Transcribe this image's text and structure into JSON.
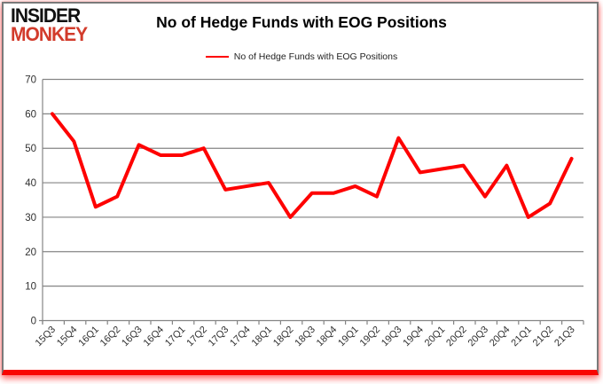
{
  "branding": {
    "line1": "INSIDER",
    "line2": "MONKEY",
    "insider_color": "#111111",
    "monkey_color": "#d23b2b"
  },
  "header": {
    "title": "No of Hedge Funds with EOG Positions"
  },
  "legend": {
    "label": "No of Hedge Funds with EOG Positions"
  },
  "chart_data": {
    "type": "line",
    "title": "No of Hedge Funds with EOG Positions",
    "categories": [
      "15Q3",
      "15Q4",
      "16Q1",
      "16Q2",
      "16Q3",
      "16Q4",
      "17Q1",
      "17Q2",
      "17Q3",
      "17Q4",
      "18Q1",
      "18Q2",
      "18Q3",
      "18Q4",
      "19Q1",
      "19Q2",
      "19Q3",
      "19Q4",
      "20Q1",
      "20Q2",
      "20Q3",
      "20Q4",
      "21Q1",
      "21Q2",
      "21Q3"
    ],
    "series": [
      {
        "name": "No of Hedge Funds with EOG Positions",
        "color": "#fe0000",
        "values": [
          60,
          52,
          33,
          36,
          51,
          48,
          48,
          50,
          38,
          39,
          40,
          30,
          37,
          37,
          39,
          36,
          53,
          43,
          44,
          45,
          36,
          45,
          30,
          34,
          47
        ]
      }
    ],
    "xlabel": "",
    "ylabel": "",
    "ylim": [
      0,
      70
    ],
    "yticks": [
      0,
      10,
      20,
      30,
      40,
      50,
      60,
      70
    ],
    "grid": true,
    "legend_position": "top-center",
    "x_label_rotation_deg": -45
  },
  "frame": {
    "border_color": "#7a7a7a",
    "bottom_bar_color": "#f90500",
    "gridline_color": "#858585",
    "axis_label_color": "#303030"
  }
}
